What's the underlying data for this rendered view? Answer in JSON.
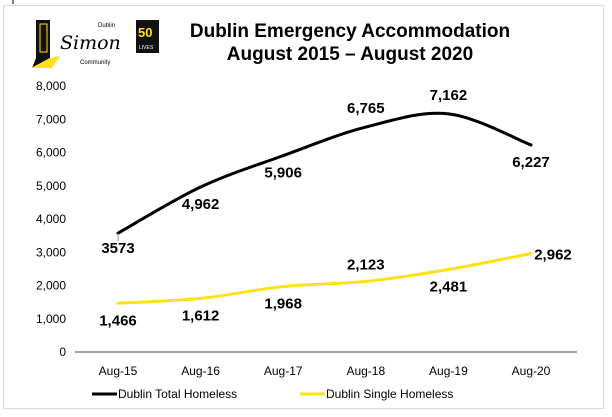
{
  "logo": {
    "text": "Dublin Simon Community",
    "badge": "50 years"
  },
  "chart_data": {
    "type": "line",
    "title": "Dublin Emergency Accommodation\nAugust 2015 – August 2020",
    "title_lines": [
      "Dublin Emergency Accommodation",
      "August 2015 – August 2020"
    ],
    "categories": [
      "Aug-15",
      "Aug-16",
      "Aug-17",
      "Aug-18",
      "Aug-19",
      "Aug-20"
    ],
    "series": [
      {
        "name": "Dublin Total Homeless",
        "color": "#000000",
        "values": [
          3573,
          4962,
          5906,
          6765,
          7162,
          6227
        ],
        "labels": [
          "3573",
          "4,962",
          "5,906",
          "6,765",
          "7,162",
          "6,227"
        ]
      },
      {
        "name": "Dublin Single Homeless",
        "color": "#FFE11A",
        "values": [
          1466,
          1612,
          1968,
          2123,
          2481,
          2962
        ],
        "labels": [
          "1,466",
          "1,612",
          "1,968",
          "2,123",
          "2,481",
          "2,962"
        ]
      }
    ],
    "yticks": [
      "0",
      "1,000",
      "2,000",
      "3,000",
      "4,000",
      "5,000",
      "6,000",
      "7,000",
      "8,000"
    ],
    "ylim": [
      0,
      8000
    ],
    "grid": false,
    "legend": "bottom"
  }
}
